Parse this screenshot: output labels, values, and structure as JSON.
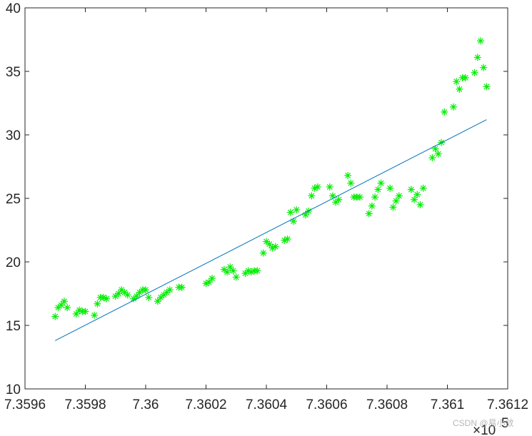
{
  "chart_data": {
    "type": "scatter",
    "title": "",
    "xlabel": "",
    "ylabel": "",
    "x_exponent_label": "×10",
    "x_exponent_power": "5",
    "xlim": [
      7.3596,
      7.3612
    ],
    "ylim": [
      10,
      40
    ],
    "x_ticks": [
      "7.3596",
      "7.3598",
      "7.36",
      "7.3602",
      "7.3604",
      "7.3606",
      "7.3608",
      "7.361",
      "7.3612"
    ],
    "x_tick_values": [
      7.3596,
      7.3598,
      7.36,
      7.3602,
      7.3604,
      7.3606,
      7.3608,
      7.361,
      7.3612
    ],
    "y_ticks": [
      "10",
      "15",
      "20",
      "25",
      "30",
      "35",
      "40"
    ],
    "y_tick_values": [
      10,
      15,
      20,
      25,
      30,
      35,
      40
    ],
    "grid": false,
    "legend": "none",
    "series": [
      {
        "kind": "scatter",
        "marker": "asterisk",
        "color": "#00ee00",
        "points": [
          [
            7.3597,
            15.7
          ],
          [
            7.35971,
            16.4
          ],
          [
            7.35972,
            16.6
          ],
          [
            7.35973,
            16.9
          ],
          [
            7.35974,
            16.4
          ],
          [
            7.35977,
            15.9
          ],
          [
            7.35978,
            16.2
          ],
          [
            7.35979,
            16.1
          ],
          [
            7.3598,
            16.1
          ],
          [
            7.35983,
            15.8
          ],
          [
            7.35984,
            16.7
          ],
          [
            7.35985,
            17.2
          ],
          [
            7.35986,
            17.2
          ],
          [
            7.35987,
            17.1
          ],
          [
            7.3599,
            17.3
          ],
          [
            7.35991,
            17.5
          ],
          [
            7.35992,
            17.8
          ],
          [
            7.35993,
            17.6
          ],
          [
            7.35994,
            17.4
          ],
          [
            7.35996,
            17.1
          ],
          [
            7.35997,
            17.3
          ],
          [
            7.35998,
            17.6
          ],
          [
            7.35999,
            17.8
          ],
          [
            7.36,
            17.8
          ],
          [
            7.36001,
            17.2
          ],
          [
            7.36004,
            16.9
          ],
          [
            7.36005,
            17.2
          ],
          [
            7.36006,
            17.4
          ],
          [
            7.36007,
            17.6
          ],
          [
            7.36008,
            17.8
          ],
          [
            7.36011,
            18.0
          ],
          [
            7.36012,
            18.0
          ],
          [
            7.3602,
            18.3
          ],
          [
            7.36021,
            18.4
          ],
          [
            7.36022,
            18.7
          ],
          [
            7.36026,
            19.4
          ],
          [
            7.36027,
            19.2
          ],
          [
            7.36028,
            19.6
          ],
          [
            7.36029,
            19.3
          ],
          [
            7.3603,
            18.8
          ],
          [
            7.36033,
            19.1
          ],
          [
            7.36034,
            19.3
          ],
          [
            7.36035,
            19.2
          ],
          [
            7.36036,
            19.3
          ],
          [
            7.36037,
            19.3
          ],
          [
            7.36039,
            20.7
          ],
          [
            7.3604,
            21.6
          ],
          [
            7.36041,
            21.4
          ],
          [
            7.36042,
            21.1
          ],
          [
            7.36043,
            21.2
          ],
          [
            7.36046,
            21.7
          ],
          [
            7.36047,
            21.8
          ],
          [
            7.36048,
            23.9
          ],
          [
            7.36049,
            23.2
          ],
          [
            7.3605,
            24.1
          ],
          [
            7.36053,
            23.7
          ],
          [
            7.36054,
            24.0
          ],
          [
            7.36055,
            25.2
          ],
          [
            7.36056,
            25.8
          ],
          [
            7.36057,
            25.9
          ],
          [
            7.36061,
            25.9
          ],
          [
            7.36062,
            25.2
          ],
          [
            7.36063,
            24.7
          ],
          [
            7.36064,
            24.9
          ],
          [
            7.36067,
            26.8
          ],
          [
            7.36068,
            26.2
          ],
          [
            7.36069,
            25.1
          ],
          [
            7.3607,
            25.1
          ],
          [
            7.36071,
            25.1
          ],
          [
            7.36074,
            23.8
          ],
          [
            7.36075,
            24.4
          ],
          [
            7.36076,
            25.1
          ],
          [
            7.36077,
            25.7
          ],
          [
            7.36078,
            26.2
          ],
          [
            7.36081,
            25.8
          ],
          [
            7.36082,
            24.3
          ],
          [
            7.36083,
            24.8
          ],
          [
            7.36084,
            25.2
          ],
          [
            7.36088,
            25.7
          ],
          [
            7.36089,
            24.9
          ],
          [
            7.3609,
            25.3
          ],
          [
            7.36091,
            24.5
          ],
          [
            7.36092,
            25.8
          ],
          [
            7.36095,
            28.2
          ],
          [
            7.36096,
            28.9
          ],
          [
            7.36097,
            28.5
          ],
          [
            7.36098,
            29.4
          ],
          [
            7.36099,
            31.8
          ],
          [
            7.36102,
            32.2
          ],
          [
            7.36103,
            34.2
          ],
          [
            7.36104,
            33.6
          ],
          [
            7.36105,
            34.5
          ],
          [
            7.36106,
            34.5
          ],
          [
            7.36109,
            34.9
          ],
          [
            7.3611,
            36.1
          ],
          [
            7.36111,
            37.4
          ],
          [
            7.36112,
            35.3
          ],
          [
            7.36113,
            33.8
          ]
        ]
      },
      {
        "kind": "line",
        "color": "#0072bd",
        "points": [
          [
            7.3597,
            13.8
          ],
          [
            7.36113,
            31.2
          ]
        ]
      }
    ]
  },
  "watermark": "CSDN @易小敛"
}
